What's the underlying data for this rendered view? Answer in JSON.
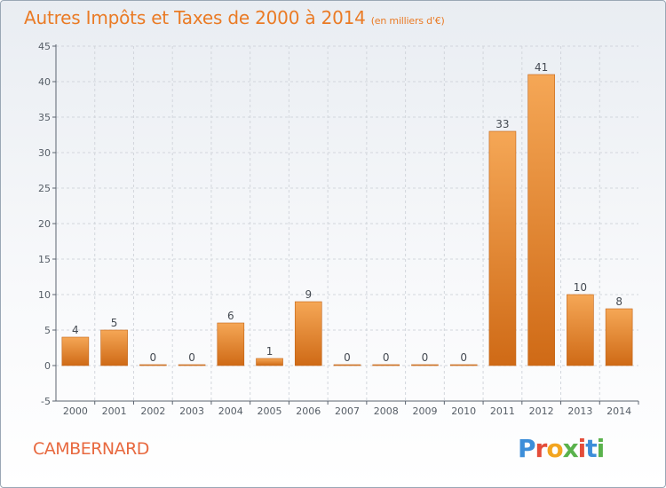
{
  "title": "Autres Impôts et Taxes de 2000 à 2014",
  "subtitle": "(en milliers d'€)",
  "place": "CAMBERNARD",
  "logo": {
    "letters": [
      "P",
      "r",
      "o",
      "x",
      "i",
      "t",
      "i"
    ],
    "colors": [
      "#3d8ed9",
      "#e44d3a",
      "#f3a51f",
      "#5ab24c",
      "#e44d3a",
      "#3d8ed9",
      "#5ab24c"
    ]
  },
  "colors": {
    "title": "#ea7b25",
    "bar_top": "#f5a756",
    "bar_bottom": "#cf6a16",
    "axis": "#5c6470",
    "grid": "#d2d6dc"
  },
  "chart_data": {
    "type": "bar",
    "title": "Autres Impôts et Taxes de 2000 à 2014",
    "subtitle": "(en milliers d'€)",
    "categories": [
      "2000",
      "2001",
      "2002",
      "2003",
      "2004",
      "2005",
      "2006",
      "2007",
      "2008",
      "2009",
      "2010",
      "2011",
      "2012",
      "2013",
      "2014"
    ],
    "values": [
      4,
      5,
      0,
      0,
      6,
      1,
      9,
      0,
      0,
      0,
      0,
      33,
      41,
      10,
      8
    ],
    "data_labels": [
      "4",
      "5",
      "0",
      "0",
      "6",
      "1",
      "9",
      "0",
      "0",
      "0",
      "0",
      "33",
      "41",
      "10",
      "8"
    ],
    "yticks": [
      "-5",
      "0",
      "5",
      "10",
      "15",
      "20",
      "25",
      "30",
      "35",
      "40",
      "45"
    ],
    "ytick_values": [
      -5,
      0,
      5,
      10,
      15,
      20,
      25,
      30,
      35,
      40,
      45
    ],
    "ylim": [
      -5,
      45
    ],
    "grid": true,
    "legend": "none"
  }
}
